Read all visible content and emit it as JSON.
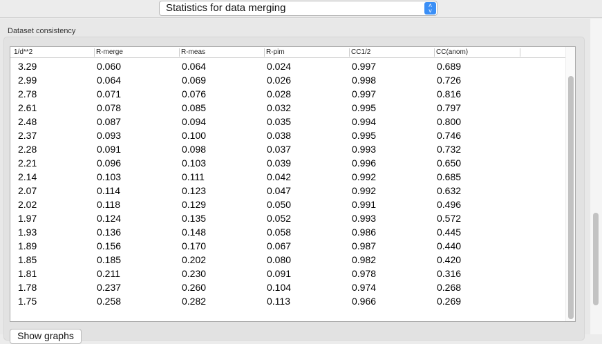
{
  "header": {
    "selector_value": "Statistics for data merging"
  },
  "group": {
    "label": "Dataset consistency"
  },
  "table": {
    "columns": [
      "1/d**2",
      "R-merge",
      "R-meas",
      "R-pim",
      "CC1/2",
      "CC(anom)"
    ],
    "rows": [
      [
        "3.29",
        "0.060",
        "0.064",
        "0.024",
        "0.997",
        "0.689"
      ],
      [
        "2.99",
        "0.064",
        "0.069",
        "0.026",
        "0.998",
        "0.726"
      ],
      [
        "2.78",
        "0.071",
        "0.076",
        "0.028",
        "0.997",
        "0.816"
      ],
      [
        "2.61",
        "0.078",
        "0.085",
        "0.032",
        "0.995",
        "0.797"
      ],
      [
        "2.48",
        "0.087",
        "0.094",
        "0.035",
        "0.994",
        "0.800"
      ],
      [
        "2.37",
        "0.093",
        "0.100",
        "0.038",
        "0.995",
        "0.746"
      ],
      [
        "2.28",
        "0.091",
        "0.098",
        "0.037",
        "0.993",
        "0.732"
      ],
      [
        "2.21",
        "0.096",
        "0.103",
        "0.039",
        "0.996",
        "0.650"
      ],
      [
        "2.14",
        "0.103",
        "0.111",
        "0.042",
        "0.992",
        "0.685"
      ],
      [
        "2.07",
        "0.114",
        "0.123",
        "0.047",
        "0.992",
        "0.632"
      ],
      [
        "2.02",
        "0.118",
        "0.129",
        "0.050",
        "0.991",
        "0.496"
      ],
      [
        "1.97",
        "0.124",
        "0.135",
        "0.052",
        "0.993",
        "0.572"
      ],
      [
        "1.93",
        "0.136",
        "0.148",
        "0.058",
        "0.986",
        "0.445"
      ],
      [
        "1.89",
        "0.156",
        "0.170",
        "0.067",
        "0.987",
        "0.440"
      ],
      [
        "1.85",
        "0.185",
        "0.202",
        "0.080",
        "0.982",
        "0.420"
      ],
      [
        "1.81",
        "0.211",
        "0.230",
        "0.091",
        "0.978",
        "0.316"
      ],
      [
        "1.78",
        "0.237",
        "0.260",
        "0.104",
        "0.974",
        "0.268"
      ],
      [
        "1.75",
        "0.258",
        "0.282",
        "0.113",
        "0.966",
        "0.269"
      ]
    ]
  },
  "buttons": {
    "show_graphs": "Show graphs"
  },
  "icons": {
    "selector_arrows": "up-down-chevron-icon"
  },
  "colors": {
    "accent": "#3b8ff6"
  }
}
